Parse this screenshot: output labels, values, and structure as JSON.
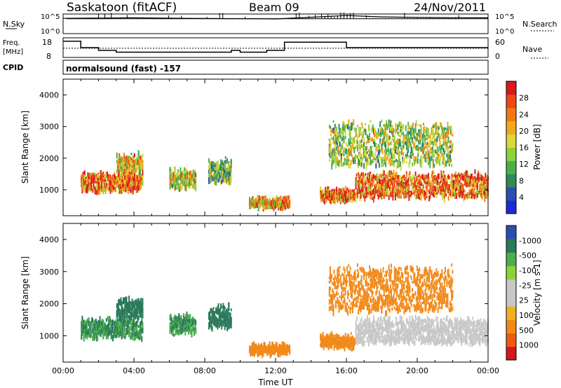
{
  "header": {
    "station": "Saskatoon (fitACF)",
    "beam": "Beam 09",
    "date": "24/Nov/2011"
  },
  "panels": {
    "nsky": {
      "label": "N.Sky",
      "tick_top": "10^5",
      "tick_bottom": "10^0",
      "right_top": "10^5",
      "right_bottom": "10^0",
      "right_label": "N.Search"
    },
    "freq": {
      "label_line1": "Freq.",
      "label_line2": "[MHz]",
      "tick_top": "18",
      "tick_bottom": "8",
      "right_top": "60",
      "right_bottom": "0",
      "right_label": "Nave"
    },
    "cpid": {
      "label": "CPID",
      "text": "normalsound (fast) -157"
    }
  },
  "colors": {
    "power": [
      "#1d2ad8",
      "#2a4fb0",
      "#2f8a5a",
      "#4bb04b",
      "#8ed23a",
      "#d8d83a",
      "#f2a81c",
      "#f07a10",
      "#ec4a12",
      "#d81a1a"
    ],
    "velocity": [
      "#d41818",
      "#ee5a14",
      "#f28a1a",
      "#f2b020",
      "#c8c8c8",
      "#c8c8c8",
      "#8ed23a",
      "#4bb04b",
      "#2a7a5a",
      "#2a4fb0"
    ]
  },
  "chart_data": [
    {
      "type": "line",
      "title": "N.Sky / N.Search",
      "x": [
        "00:00",
        "02:00",
        "04:00",
        "06:00",
        "08:00",
        "10:00",
        "12:00",
        "14:00",
        "16:00",
        "18:00",
        "20:00",
        "22:00",
        "24:00"
      ],
      "series": [
        {
          "name": "N.Sky",
          "values": [
            10000,
            12000,
            15000,
            11000,
            9000,
            8000,
            7000,
            20000,
            60000,
            25000,
            18000,
            15000,
            14000
          ]
        }
      ],
      "ylim": [
        "10^0",
        "10^5"
      ]
    },
    {
      "type": "line",
      "title": "Freq. / Nave",
      "x": [
        "00:00",
        "01:00",
        "02:00",
        "03:00",
        "06:00",
        "09:30",
        "10:00",
        "11:30",
        "12:30",
        "14:30",
        "16:00",
        "24:00"
      ],
      "series": [
        {
          "name": "Freq.",
          "values": [
            16.5,
            13,
            11.5,
            10.5,
            10.5,
            11.5,
            10.5,
            11.5,
            16,
            16,
            13,
            13
          ]
        },
        {
          "name": "Nave",
          "values": [
            28,
            28,
            28,
            28,
            28,
            28,
            28,
            28,
            28,
            28,
            28,
            28
          ]
        }
      ],
      "ylim": [
        8,
        18
      ],
      "y2lim": [
        0,
        60
      ]
    },
    {
      "type": "heatmap",
      "title": "Power",
      "xlabel": "",
      "ylabel": "Slant Range [km]",
      "colorbar_label": "Power [dB]",
      "colorbar_ticks": [
        "4",
        "8",
        "12",
        "16",
        "20",
        "24",
        "28"
      ],
      "xlim": [
        "00:00",
        "24:00"
      ],
      "ylim": [
        180,
        4500
      ],
      "yticks": [
        "1000",
        "2000",
        "3000",
        "4000"
      ],
      "regions": [
        {
          "t": [
            1.0,
            4.5
          ],
          "r": [
            900,
            1600
          ],
          "value": 24
        },
        {
          "t": [
            3.0,
            4.5
          ],
          "r": [
            1500,
            2200
          ],
          "value": 18
        },
        {
          "t": [
            6.0,
            7.5
          ],
          "r": [
            1000,
            1700
          ],
          "value": 16
        },
        {
          "t": [
            8.2,
            9.5
          ],
          "r": [
            1200,
            2000
          ],
          "value": 12
        },
        {
          "t": [
            10.5,
            12.8
          ],
          "r": [
            400,
            800
          ],
          "value": 20
        },
        {
          "t": [
            14.5,
            16.5
          ],
          "r": [
            600,
            1100
          ],
          "value": 24
        },
        {
          "t": [
            16.5,
            24.0
          ],
          "r": [
            700,
            1600
          ],
          "value": 24
        },
        {
          "t": [
            15.0,
            22.0
          ],
          "r": [
            1700,
            3200
          ],
          "value": 14
        }
      ]
    },
    {
      "type": "heatmap",
      "title": "Velocity",
      "xlabel": "Time UT",
      "ylabel": "Slant Range [km]",
      "colorbar_label": "Velocity [m s-1]",
      "colorbar_ticks": [
        "1000",
        "500",
        "100",
        "25",
        "-25",
        "-100",
        "-500",
        "-1000"
      ],
      "xlim": [
        "00:00",
        "24:00"
      ],
      "xticks": [
        "00:00",
        "04:00",
        "08:00",
        "12:00",
        "16:00",
        "20:00",
        "00:00"
      ],
      "ylim": [
        180,
        4500
      ],
      "yticks": [
        "1000",
        "2000",
        "3000",
        "4000"
      ],
      "regions": [
        {
          "t": [
            1.0,
            4.5
          ],
          "r": [
            900,
            1600
          ],
          "value": 100
        },
        {
          "t": [
            3.0,
            4.5
          ],
          "r": [
            1500,
            2200
          ],
          "value": 150
        },
        {
          "t": [
            6.0,
            7.5
          ],
          "r": [
            1000,
            1700
          ],
          "value": 100
        },
        {
          "t": [
            8.2,
            9.5
          ],
          "r": [
            1200,
            2000
          ],
          "value": 200
        },
        {
          "t": [
            10.5,
            12.8
          ],
          "r": [
            400,
            800
          ],
          "value": -300
        },
        {
          "t": [
            14.5,
            16.5
          ],
          "r": [
            600,
            1100
          ],
          "value": -150
        },
        {
          "t": [
            16.5,
            24.0
          ],
          "r": [
            700,
            1600
          ],
          "value": 0
        },
        {
          "t": [
            15.0,
            22.0
          ],
          "r": [
            1700,
            3200
          ],
          "value": -200
        }
      ]
    }
  ]
}
